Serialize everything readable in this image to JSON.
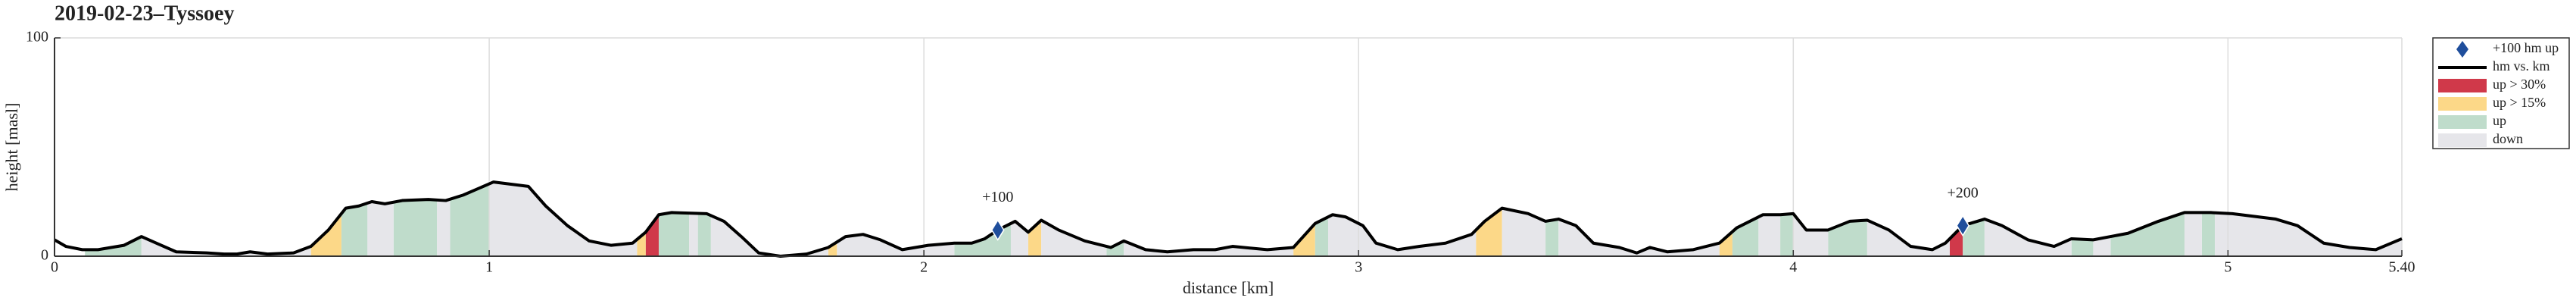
{
  "chart_data": {
    "type": "area-profile",
    "title": "2019-02-23–Tyssoey",
    "x_label": "distance [km]",
    "y_label": "height [masl]",
    "xlim": [
      0,
      5.4
    ],
    "ylim": [
      0,
      100
    ],
    "xticks": [
      0,
      1,
      2,
      3,
      4,
      5,
      {
        "value": 5.4,
        "label": "5.40"
      }
    ],
    "yticks": [
      0,
      100
    ],
    "grid": true,
    "legend": "outside right",
    "line": {
      "name": "hm vs. km",
      "color": "#000000",
      "x": [
        0,
        0.026,
        0.064,
        0.1,
        0.16,
        0.2,
        0.234,
        0.28,
        0.35,
        0.39,
        0.42,
        0.45,
        0.49,
        0.55,
        0.59,
        0.63,
        0.67,
        0.7,
        0.73,
        0.76,
        0.8,
        0.86,
        0.9,
        0.94,
        1.01,
        1.05,
        1.09,
        1.13,
        1.18,
        1.23,
        1.28,
        1.33,
        1.36,
        1.39,
        1.42,
        1.5,
        1.54,
        1.58,
        1.62,
        1.67,
        1.73,
        1.78,
        1.82,
        1.86,
        1.9,
        1.95,
        2.01,
        2.07,
        2.11,
        2.14,
        2.17,
        2.21,
        2.24,
        2.27,
        2.31,
        2.37,
        2.43,
        2.46,
        2.51,
        2.56,
        2.62,
        2.67,
        2.71,
        2.79,
        2.85,
        2.9,
        2.94,
        2.97,
        3.01,
        3.04,
        3.09,
        3.14,
        3.2,
        3.26,
        3.29,
        3.33,
        3.39,
        3.43,
        3.46,
        3.5,
        3.54,
        3.6,
        3.64,
        3.67,
        3.71,
        3.77,
        3.83,
        3.87,
        3.93,
        3.97,
        4.0,
        4.03,
        4.08,
        4.13,
        4.17,
        4.22,
        4.27,
        4.32,
        4.35,
        4.39,
        4.44,
        4.48,
        4.54,
        4.6,
        4.64,
        4.69,
        4.77,
        4.84,
        4.9,
        4.96,
        5.01,
        5.11,
        5.16,
        5.22,
        5.28,
        5.34,
        5.4
      ],
      "values": [
        7.5,
        4.5,
        3,
        3,
        5,
        9,
        6,
        2,
        1.5,
        1,
        1,
        2,
        1,
        1.5,
        4.5,
        12,
        22,
        23,
        25,
        24,
        25.5,
        26,
        25.5,
        28,
        34,
        33,
        32,
        23,
        14,
        7,
        5,
        6,
        11,
        19,
        20,
        19.5,
        16,
        9,
        1.5,
        0,
        1,
        4,
        9,
        10,
        7.5,
        3,
        5,
        6,
        6,
        8,
        12,
        16,
        11,
        16.5,
        12,
        7,
        4,
        7,
        3,
        2,
        3,
        3,
        4.5,
        3,
        4,
        15,
        19,
        18,
        14,
        6,
        3,
        4.5,
        6,
        10,
        16,
        22,
        19.5,
        16,
        17,
        14,
        6,
        4,
        1.5,
        4,
        2,
        3,
        6,
        13,
        19,
        19,
        19.5,
        12,
        12,
        16,
        16.5,
        12,
        4.5,
        3,
        6,
        14,
        17,
        14,
        7.5,
        4.5,
        8,
        7.5,
        10.5,
        16,
        20,
        20,
        19.5,
        17,
        14,
        6,
        4,
        3,
        8
      ]
    },
    "markers": {
      "name": "+100 hm up",
      "color": "#1f4e9c",
      "points": [
        {
          "x": 2.17,
          "y": 12,
          "label": "+100"
        },
        {
          "x": 4.39,
          "y": 14,
          "label": "+200"
        }
      ]
    },
    "fills": [
      {
        "name": "up > 30%",
        "color": "#d0394a",
        "ranges": [
          [
            1.36,
            1.39
          ],
          [
            4.36,
            4.39
          ]
        ]
      },
      {
        "name": "up > 15%",
        "color": "#fcd888",
        "ranges": [
          [
            0.59,
            0.66
          ],
          [
            1.34,
            1.36
          ],
          [
            1.78,
            1.8
          ],
          [
            2.24,
            2.27
          ],
          [
            2.85,
            2.9
          ],
          [
            3.27,
            3.33
          ],
          [
            3.83,
            3.86
          ]
        ]
      },
      {
        "name": "up",
        "color": "#bfdccb",
        "ranges": [
          [
            0.07,
            0.2
          ],
          [
            0.66,
            0.72
          ],
          [
            0.78,
            0.88
          ],
          [
            0.91,
            1.0
          ],
          [
            1.39,
            1.46
          ],
          [
            1.48,
            1.51
          ],
          [
            2.07,
            2.2
          ],
          [
            2.42,
            2.46
          ],
          [
            2.9,
            2.93
          ],
          [
            3.43,
            3.46
          ],
          [
            3.86,
            3.92
          ],
          [
            3.97,
            4.0
          ],
          [
            4.08,
            4.17
          ],
          [
            4.39,
            4.44
          ],
          [
            4.64,
            4.69
          ],
          [
            4.73,
            4.9
          ],
          [
            4.94,
            4.97
          ]
        ]
      },
      {
        "name": "down",
        "color": "#e6e6ea",
        "ranges": [
          [
            0.2,
            0.59
          ],
          [
            0.72,
            0.78
          ],
          [
            0.88,
            0.91
          ],
          [
            1.0,
            1.34
          ],
          [
            1.46,
            1.48
          ],
          [
            1.51,
            1.78
          ],
          [
            1.8,
            2.07
          ],
          [
            2.2,
            2.24
          ],
          [
            2.27,
            2.42
          ],
          [
            2.46,
            2.85
          ],
          [
            2.93,
            3.27
          ],
          [
            3.33,
            3.43
          ],
          [
            3.46,
            3.83
          ],
          [
            3.92,
            3.97
          ],
          [
            4.0,
            4.08
          ],
          [
            4.17,
            4.36
          ],
          [
            4.44,
            4.64
          ],
          [
            4.69,
            4.73
          ],
          [
            4.9,
            4.94
          ],
          [
            4.97,
            5.4
          ]
        ]
      }
    ]
  }
}
